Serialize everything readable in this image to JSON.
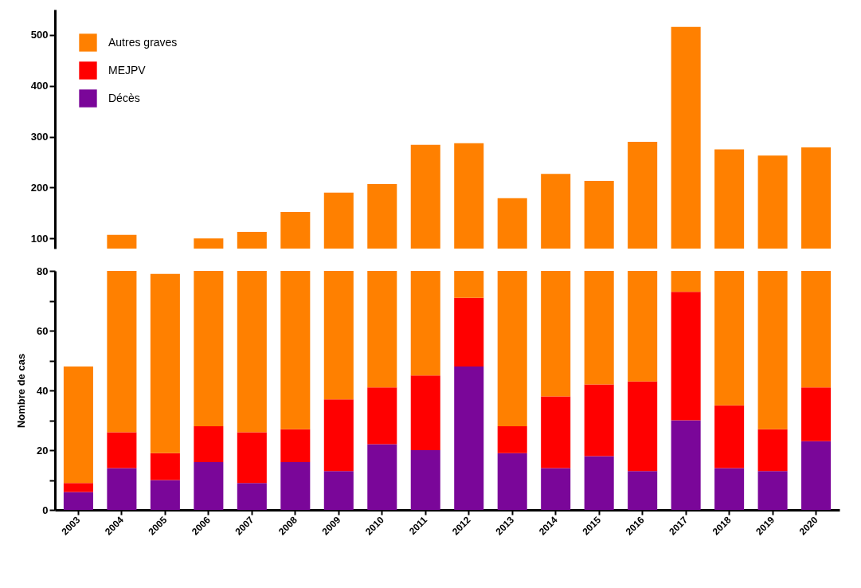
{
  "chart_data": [
    {
      "type": "bar",
      "categories": [
        "2003",
        "2004",
        "2005",
        "2006",
        "2007",
        "2008",
        "2009",
        "2010",
        "2011",
        "2012",
        "2013",
        "2014",
        "2015",
        "2016",
        "2017",
        "2018",
        "2019",
        "2020"
      ],
      "series": [
        {
          "color": "#ff8000",
          "values": [
            null,
            107,
            null,
            100,
            113,
            152,
            190,
            207,
            284,
            287,
            179,
            227,
            213,
            290,
            516,
            275,
            263,
            279
          ]
        }
      ],
      "ylim": [
        80,
        550
      ],
      "yticks": [
        100,
        200,
        300,
        400,
        500
      ],
      "tick_labels": "y",
      "grid": false
    },
    {
      "type": "bar",
      "ylabel": "Nombre de cas",
      "categories": [
        "2003",
        "2004",
        "2005",
        "2006",
        "2007",
        "2008",
        "2009",
        "2010",
        "2011",
        "2012",
        "2013",
        "2014",
        "2015",
        "2016",
        "2017",
        "2018",
        "2019",
        "2020"
      ],
      "stacked": true,
      "series": [
        {
          "name": "Décès",
          "color": "#7a0699",
          "values": [
            6,
            14,
            10,
            16,
            9,
            16,
            13,
            22,
            20,
            48,
            19,
            14,
            18,
            13,
            30,
            14,
            13,
            23
          ]
        },
        {
          "name": "MEJPV",
          "color": "#ff0000",
          "values": [
            3,
            12,
            9,
            12,
            17,
            11,
            24,
            19,
            25,
            23,
            9,
            24,
            24,
            30,
            43,
            21,
            14,
            18
          ]
        },
        {
          "name": "Autres graves",
          "color": "#ff8000",
          "values": [
            39,
            54,
            60,
            52,
            54,
            53,
            43,
            39,
            35,
            9,
            52,
            42,
            38,
            37,
            7,
            45,
            53,
            39
          ]
        }
      ],
      "ylim": [
        0,
        80
      ],
      "yticks": [
        0,
        {
          "value": 10,
          "label": null
        },
        20,
        {
          "value": 30,
          "label": null
        },
        40,
        {
          "value": 50,
          "label": null
        },
        60,
        {
          "value": 70,
          "label": null
        },
        80
      ],
      "legend": "top left",
      "grid": false
    }
  ]
}
